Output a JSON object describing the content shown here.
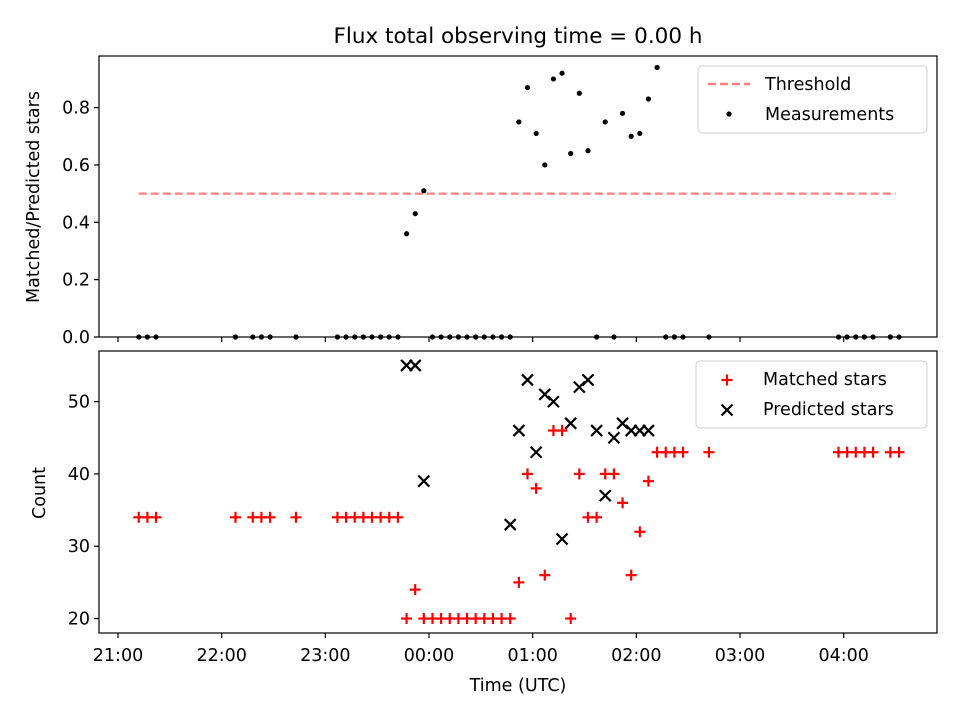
{
  "figure": {
    "title": "Flux total observing time = 0.00 h",
    "xlabel": "Time (UTC)"
  },
  "colors": {
    "threshold": "#ff7f7f",
    "measurements": "#000000",
    "matched": "#ff0000",
    "predicted": "#000000"
  },
  "chart_data": [
    {
      "type": "scatter",
      "panel": "top",
      "ylabel": "Matched/Predicted stars",
      "xlim": [
        "20:49",
        "04:54"
      ],
      "ylim": [
        0,
        0.98
      ],
      "yticks": [
        0.0,
        0.2,
        0.4,
        0.6,
        0.8
      ],
      "ytick_labels": [
        "0.0",
        "0.2",
        "0.4",
        "0.6",
        "0.8"
      ],
      "legend": {
        "position": "upper right",
        "entries": [
          {
            "key": "threshold",
            "label": "Threshold",
            "marker": "dashed-line"
          },
          {
            "key": "measurements",
            "label": "Measurements",
            "marker": "dot"
          }
        ]
      },
      "threshold": {
        "name": "Threshold",
        "value": 0.5,
        "x_range": [
          "21:12",
          "04:30"
        ]
      },
      "series": [
        {
          "name": "Measurements",
          "x": [
            "21:12",
            "21:17",
            "21:22",
            "22:08",
            "22:18",
            "22:23",
            "22:28",
            "22:43",
            "23:07",
            "23:12",
            "23:17",
            "23:22",
            "23:27",
            "23:32",
            "23:37",
            "23:42",
            "23:47",
            "23:52",
            "23:57",
            "00:02",
            "00:07",
            "00:12",
            "00:17",
            "00:22",
            "00:27",
            "00:32",
            "00:37",
            "00:42",
            "00:47",
            "00:52",
            "00:57",
            "01:02",
            "01:07",
            "01:12",
            "01:17",
            "01:22",
            "01:27",
            "01:32",
            "01:37",
            "01:42",
            "01:47",
            "01:52",
            "01:57",
            "02:02",
            "02:07",
            "02:12",
            "02:17",
            "02:22",
            "02:27",
            "02:42",
            "03:57",
            "04:02",
            "04:07",
            "04:12",
            "04:17",
            "04:27",
            "04:32"
          ],
          "y": [
            0,
            0,
            0,
            0,
            0,
            0,
            0,
            0,
            0,
            0,
            0,
            0,
            0,
            0,
            0,
            0,
            0.36,
            0.43,
            0.51,
            0,
            0,
            0,
            0,
            0,
            0,
            0,
            0,
            0,
            0,
            0.75,
            0.87,
            0.71,
            0.6,
            0.9,
            0.92,
            0.64,
            0.85,
            0.65,
            0,
            0.75,
            0,
            0.78,
            0.7,
            0.71,
            0.83,
            0.94,
            0,
            0,
            0,
            0,
            0,
            0,
            0,
            0,
            0,
            0,
            0
          ]
        }
      ]
    },
    {
      "type": "scatter",
      "panel": "bottom",
      "ylabel": "Count",
      "xlim": [
        "20:49",
        "04:54"
      ],
      "ylim": [
        18,
        57
      ],
      "yticks": [
        20,
        30,
        40,
        50
      ],
      "ytick_labels": [
        "20",
        "30",
        "40",
        "50"
      ],
      "xticks": [
        "21:00",
        "22:00",
        "23:00",
        "00:00",
        "01:00",
        "02:00",
        "03:00",
        "04:00"
      ],
      "xtick_labels": [
        "21:00",
        "22:00",
        "23:00",
        "00:00",
        "01:00",
        "02:00",
        "03:00",
        "04:00"
      ],
      "legend": {
        "position": "upper right",
        "entries": [
          {
            "key": "matched",
            "label": "Matched stars",
            "marker": "plus"
          },
          {
            "key": "predicted",
            "label": "Predicted stars",
            "marker": "x"
          }
        ]
      },
      "series": [
        {
          "name": "Matched stars",
          "x": [
            "21:12",
            "21:17",
            "21:22",
            "22:08",
            "22:18",
            "22:23",
            "22:28",
            "22:43",
            "23:07",
            "23:12",
            "23:17",
            "23:22",
            "23:27",
            "23:32",
            "23:37",
            "23:42",
            "23:47",
            "23:52",
            "23:57",
            "00:02",
            "00:07",
            "00:12",
            "00:17",
            "00:22",
            "00:27",
            "00:32",
            "00:37",
            "00:42",
            "00:47",
            "00:52",
            "00:57",
            "01:02",
            "01:07",
            "01:12",
            "01:17",
            "01:22",
            "01:27",
            "01:32",
            "01:37",
            "01:42",
            "01:47",
            "01:52",
            "01:57",
            "02:02",
            "02:07",
            "02:12",
            "02:17",
            "02:22",
            "02:27",
            "02:42",
            "03:57",
            "04:02",
            "04:07",
            "04:12",
            "04:17",
            "04:27",
            "04:32"
          ],
          "y": [
            34,
            34,
            34,
            34,
            34,
            34,
            34,
            34,
            34,
            34,
            34,
            34,
            34,
            34,
            34,
            34,
            20,
            24,
            20,
            20,
            20,
            20,
            20,
            20,
            20,
            20,
            20,
            20,
            20,
            25,
            40,
            38,
            26,
            46,
            46,
            20,
            40,
            34,
            34,
            40,
            40,
            36,
            26,
            32,
            39,
            43,
            43,
            43,
            43,
            43,
            43,
            43,
            43,
            43,
            43,
            43,
            43
          ]
        },
        {
          "name": "Predicted stars",
          "x": [
            "23:47",
            "23:52",
            "23:57",
            "00:47",
            "00:52",
            "00:57",
            "01:02",
            "01:07",
            "01:12",
            "01:17",
            "01:22",
            "01:27",
            "01:32",
            "01:37",
            "01:42",
            "01:47",
            "01:52",
            "01:57",
            "02:02",
            "02:07"
          ],
          "y": [
            55,
            55,
            39,
            33,
            46,
            53,
            43,
            51,
            50,
            31,
            47,
            52,
            53,
            46,
            37,
            45,
            47,
            46,
            46,
            46
          ],
          "x_offsets_note": "approximate"
        }
      ]
    }
  ]
}
